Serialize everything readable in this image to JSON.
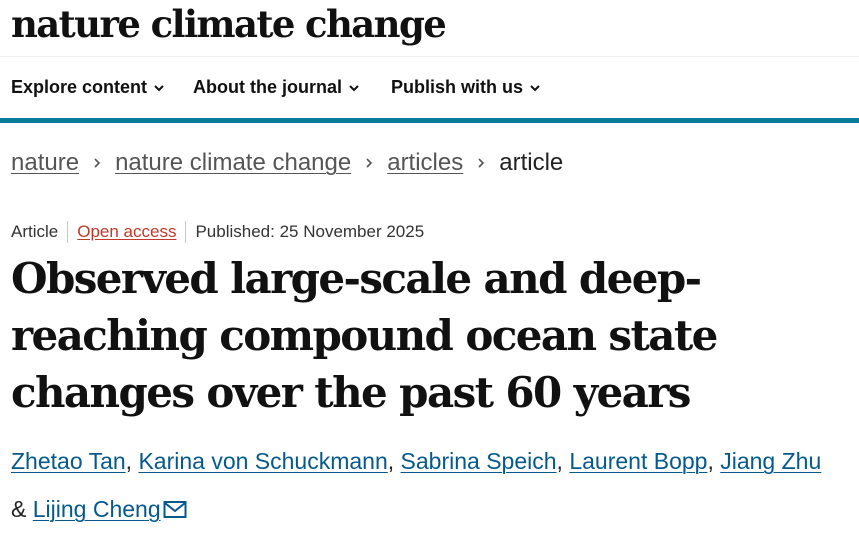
{
  "header": {
    "logo_text": "nature climate change"
  },
  "nav": {
    "items": [
      {
        "label": "Explore content",
        "icon": "chevron-down-icon"
      },
      {
        "label": "About the journal",
        "icon": "chevron-down-icon"
      },
      {
        "label": "Publish with us",
        "icon": "chevron-down-icon"
      }
    ]
  },
  "breadcrumb": {
    "items": [
      "nature",
      "nature climate change",
      "articles"
    ],
    "current": "article",
    "separator_icon": "chevron-right-icon"
  },
  "article": {
    "type": "Article",
    "access": "Open access",
    "published": "Published: 25 November 2025",
    "title": "Observed large-scale and deep-reaching compound ocean state changes over the past 60 years",
    "authors": [
      "Zhetao Tan",
      "Karina von Schuckmann",
      "Sabrina Speich",
      "Laurent Bopp",
      "Jiang Zhu",
      "Lijing Cheng"
    ],
    "author_separator": ",",
    "author_conjunction": "&",
    "corresponding_icon": "mail-icon"
  },
  "colors": {
    "accent_rule": "#0b7b9c",
    "author_link": "#06598c",
    "open_access": "#c0392b",
    "text": "#222222"
  }
}
